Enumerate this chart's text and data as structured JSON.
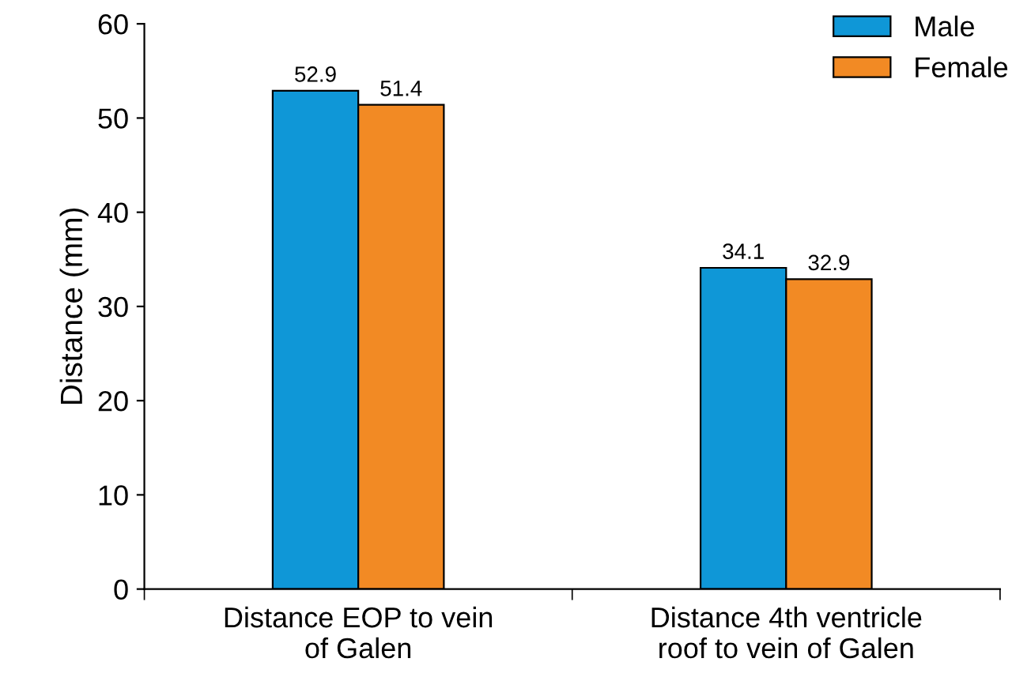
{
  "chart_data": {
    "type": "bar",
    "ylabel": "Distance (mm)",
    "categories": [
      "Distance EOP to vein\nof Galen",
      "Distance 4th ventricle\nroof to vein of Galen"
    ],
    "series": [
      {
        "name": "Male",
        "color": "#0f97d7",
        "values": [
          52.9,
          34.1
        ]
      },
      {
        "name": "Female",
        "color": "#f28a24",
        "values": [
          51.4,
          32.9
        ]
      }
    ],
    "ylim": [
      0,
      60
    ],
    "yticks": [
      0,
      10,
      20,
      30,
      40,
      50,
      60
    ],
    "data_labels": true,
    "grid": false,
    "legend": "top right"
  }
}
